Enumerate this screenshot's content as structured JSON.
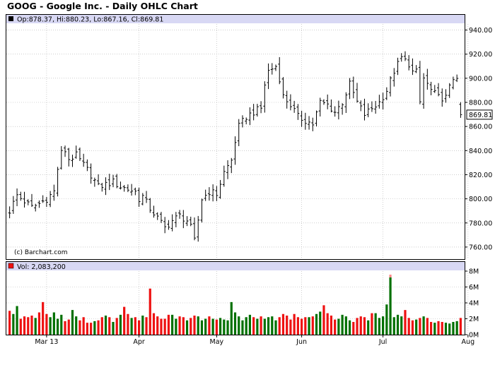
{
  "chart_data": {
    "type": "ohlc",
    "title": "GOOG - Google Inc. - Daily OHLC Chart",
    "last_ohlc_label": "Op:878.37, Hi:880.23, Lo:867.16, Cl:869.81",
    "last_close_label": "869.81",
    "copyright": "(c) Barchart.com",
    "ylim": [
      750,
      945
    ],
    "yticks": [
      {
        "v": 940,
        "label": "940.00"
      },
      {
        "v": 920,
        "label": "920.00"
      },
      {
        "v": 900,
        "label": "900.00"
      },
      {
        "v": 880,
        "label": "880.00"
      },
      {
        "v": 860,
        "label": "860.00"
      },
      {
        "v": 840,
        "label": "840.00"
      },
      {
        "v": 820,
        "label": "820.00"
      },
      {
        "v": 800,
        "label": "800.00"
      },
      {
        "v": 780,
        "label": "780.00"
      },
      {
        "v": 760,
        "label": "760.00"
      }
    ],
    "xticks": [
      {
        "index": 10,
        "label": "Mar 13"
      },
      {
        "index": 35,
        "label": "Apr"
      },
      {
        "index": 56,
        "label": "May"
      },
      {
        "index": 79,
        "label": "Jun"
      },
      {
        "index": 101,
        "label": "Jul"
      },
      {
        "index": 124,
        "label": "Aug"
      }
    ],
    "series": [
      {
        "name": "GOOG",
        "ohlc": []
      }
    ],
    "close_path": [
      [
        0,
        790
      ],
      [
        2,
        803
      ],
      [
        4,
        798
      ],
      [
        6,
        793
      ],
      [
        8,
        796
      ],
      [
        10,
        800
      ],
      [
        12,
        806
      ],
      [
        13,
        825
      ],
      [
        14,
        838
      ],
      [
        15,
        840
      ],
      [
        16,
        833
      ],
      [
        18,
        836
      ],
      [
        20,
        828
      ],
      [
        22,
        820
      ],
      [
        24,
        810
      ],
      [
        26,
        812
      ],
      [
        28,
        814
      ],
      [
        30,
        810
      ],
      [
        32,
        808
      ],
      [
        34,
        806
      ],
      [
        35,
        800
      ],
      [
        36,
        802
      ],
      [
        38,
        792
      ],
      [
        40,
        784
      ],
      [
        42,
        776
      ],
      [
        44,
        782
      ],
      [
        46,
        786
      ],
      [
        48,
        782
      ],
      [
        49,
        776
      ],
      [
        50,
        765
      ],
      [
        52,
        800
      ],
      [
        54,
        806
      ],
      [
        56,
        804
      ],
      [
        58,
        822
      ],
      [
        60,
        832
      ],
      [
        61,
        848
      ],
      [
        62,
        860
      ],
      [
        64,
        868
      ],
      [
        66,
        872
      ],
      [
        68,
        875
      ],
      [
        69,
        895
      ],
      [
        70,
        906
      ],
      [
        72,
        910
      ],
      [
        73,
        900
      ],
      [
        74,
        885
      ],
      [
        76,
        878
      ],
      [
        78,
        868
      ],
      [
        80,
        865
      ],
      [
        82,
        862
      ],
      [
        84,
        880
      ],
      [
        86,
        878
      ],
      [
        88,
        872
      ],
      [
        90,
        880
      ],
      [
        92,
        895
      ],
      [
        94,
        880
      ],
      [
        96,
        870
      ],
      [
        98,
        875
      ],
      [
        100,
        880
      ],
      [
        102,
        890
      ],
      [
        104,
        906
      ],
      [
        106,
        917
      ],
      [
        108,
        912
      ],
      [
        109,
        905
      ],
      [
        110,
        905
      ],
      [
        111,
        880
      ],
      [
        112,
        900
      ],
      [
        114,
        890
      ],
      [
        116,
        884
      ],
      [
        118,
        884
      ],
      [
        120,
        900
      ],
      [
        122,
        904
      ],
      [
        124,
        895
      ],
      [
        126,
        888
      ],
      [
        128,
        880
      ],
      [
        129,
        878
      ],
      [
        130,
        869.81
      ]
    ],
    "volume": {
      "label": "Vol: 2,083,200",
      "unit": "M",
      "ylim": [
        0,
        8
      ],
      "yticks": [
        {
          "v": 0,
          "label": "0M"
        },
        {
          "v": 2,
          "label": "2M"
        },
        {
          "v": 4,
          "label": "4M"
        },
        {
          "v": 6,
          "label": "6M"
        },
        {
          "v": 8,
          "label": "8M"
        }
      ],
      "values": [
        3.0,
        2.6,
        3.6,
        2.0,
        2.3,
        2.2,
        2.4,
        2.1,
        2.8,
        4.1,
        2.6,
        2.2,
        2.8,
        2.0,
        2.5,
        1.7,
        1.9,
        3.1,
        2.3,
        1.8,
        2.2,
        1.5,
        1.5,
        1.7,
        1.8,
        2.2,
        2.4,
        2.2,
        1.6,
        2.1,
        2.5,
        3.5,
        2.6,
        2.1,
        2.2,
        1.8,
        2.4,
        2.2,
        5.8,
        2.7,
        2.3,
        2.0,
        2.0,
        2.5,
        2.5,
        2.0,
        2.3,
        2.2,
        1.8,
        2.1,
        2.4,
        2.3,
        1.8,
        2.0,
        2.3,
        2.0,
        1.9,
        2.1,
        1.9,
        1.8,
        4.1,
        2.8,
        2.3,
        1.8,
        2.2,
        2.5,
        2.2,
        2.0,
        2.3,
        2.0,
        2.2,
        2.3,
        1.8,
        2.2,
        2.6,
        2.4,
        1.9,
        2.6,
        2.2,
        2.0,
        2.2,
        2.2,
        2.3,
        2.6,
        2.9,
        3.7,
        2.7,
        2.4,
        1.9,
        2.0,
        2.5,
        2.3,
        1.8,
        1.6,
        2.1,
        2.3,
        2.2,
        1.8,
        2.7,
        2.7,
        2.1,
        2.3,
        3.8,
        7.2,
        2.2,
        2.5,
        2.3,
        3.1,
        2.1,
        1.8,
        1.9,
        2.1,
        2.3,
        2.1,
        1.6,
        1.5,
        1.7,
        1.6,
        1.5,
        1.4,
        1.6,
        1.7,
        2.1
      ],
      "highlight_index": 103
    },
    "colors": {
      "up": "#007000",
      "down": "#ee1111",
      "bar": "#000000",
      "header_bg": "#d8d8f4",
      "grid": "#aaaaaa",
      "last_box_bg": "#ffffff"
    }
  }
}
